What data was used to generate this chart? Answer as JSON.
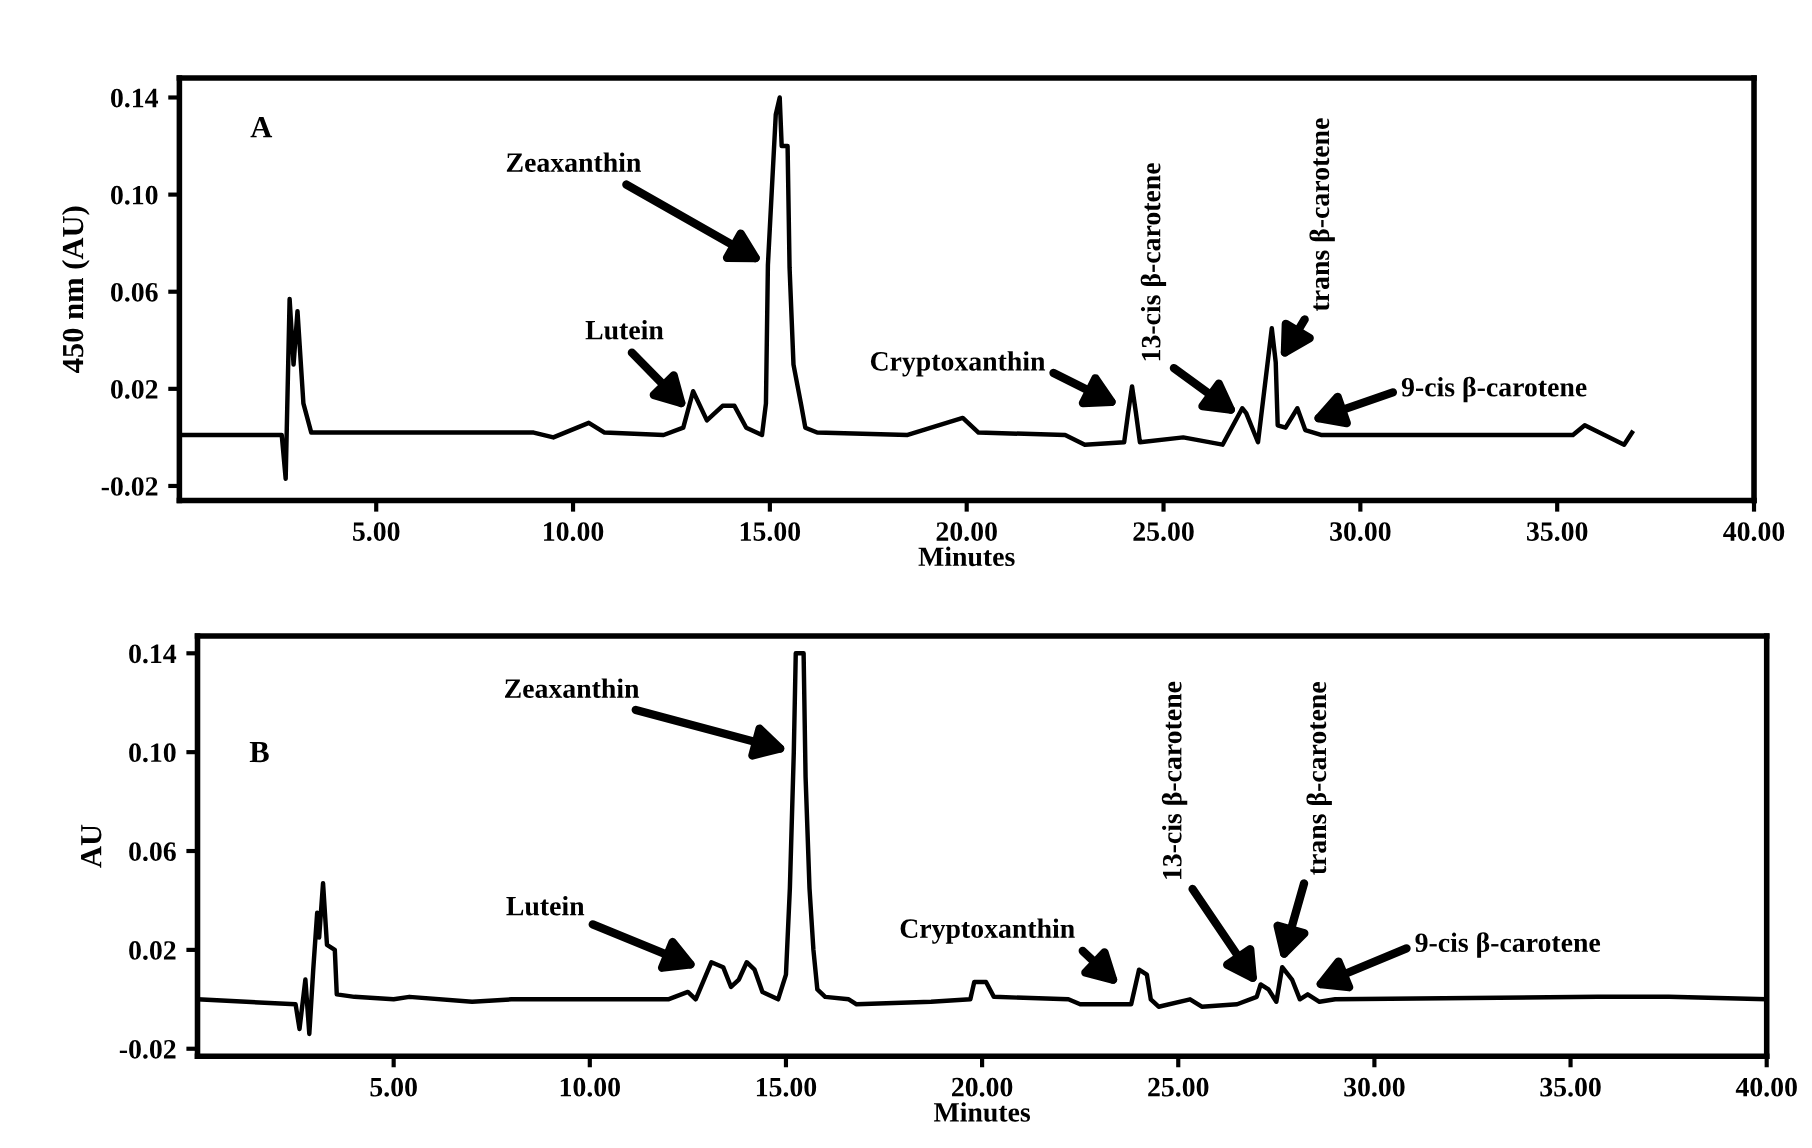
{
  "chart_data": [
    {
      "type": "line",
      "xlabel": "Minutes",
      "ylabel": "450 nm (AU)",
      "xlim": [
        0,
        40
      ],
      "ylim": [
        -0.026,
        0.148
      ],
      "xticks": [
        {
          "value": 5,
          "label": "5.00"
        },
        {
          "value": 10,
          "label": "10.00"
        },
        {
          "value": 15,
          "label": "15.00"
        },
        {
          "value": 20,
          "label": "20.00"
        },
        {
          "value": 25,
          "label": "25.00"
        },
        {
          "value": 30,
          "label": "30.00"
        },
        {
          "value": 35,
          "label": "35.00"
        },
        {
          "value": 40,
          "label": "40.00"
        }
      ],
      "yticks": [
        -0.02,
        0.02,
        0.06,
        {
          "value": 0.1,
          "label": "0.10"
        },
        0.14
      ],
      "grid": false,
      "series": [
        {
          "color": "#000000",
          "x": [
            0.1,
            1.0,
            2.0,
            2.6,
            2.7,
            2.8,
            2.9,
            3.0,
            3.15,
            3.35,
            5.0,
            9.0,
            9.5,
            10.4,
            10.8,
            12.3,
            12.8,
            13.05,
            13.4,
            13.8,
            14.1,
            14.4,
            14.8,
            14.9,
            14.95,
            15.15,
            15.25,
            15.3,
            15.45,
            15.5,
            15.6,
            15.8,
            15.9,
            16.2,
            18.5,
            19.9,
            20.3,
            22.5,
            23.0,
            24.0,
            24.1,
            24.2,
            24.3,
            24.4,
            25.5,
            26.5,
            27.0,
            27.1,
            27.4,
            27.75,
            27.85,
            27.9,
            28.1,
            28.4,
            28.6,
            29.0,
            35.4,
            35.7,
            36.2,
            36.7,
            36.9
          ],
          "values": [
            0.001,
            0.001,
            0.001,
            0.001,
            -0.017,
            0.057,
            0.03,
            0.052,
            0.014,
            0.002,
            0.002,
            0.002,
            0.0,
            0.006,
            0.002,
            0.001,
            0.004,
            0.019,
            0.007,
            0.013,
            0.013,
            0.004,
            0.001,
            0.014,
            0.071,
            0.133,
            0.14,
            0.12,
            0.12,
            0.07,
            0.03,
            0.013,
            0.004,
            0.002,
            0.001,
            0.008,
            0.002,
            0.001,
            -0.003,
            -0.002,
            0.01,
            0.021,
            0.01,
            -0.002,
            0.0,
            -0.003,
            0.012,
            0.01,
            -0.002,
            0.045,
            0.031,
            0.005,
            0.004,
            0.012,
            0.003,
            0.001,
            0.001,
            0.005,
            0.001,
            -0.003,
            0.002
          ]
        }
      ],
      "annotations": [
        "A",
        {
          "text": "Zeaxanthin",
          "x": 14.95,
          "y": 0.071
        },
        {
          "text": "Lutein",
          "x": 13.0,
          "y": 0.01
        },
        {
          "text": "Cryptoxanthin",
          "x": 24.0,
          "y": 0.012
        },
        {
          "text": "13-cis β-carotene",
          "x": 27.0,
          "y": 0.008
        },
        {
          "text": "trans β-carotene",
          "x": 27.9,
          "y": 0.03
        },
        {
          "text": "9-cis β-carotene",
          "x": 28.6,
          "y": 0.006
        }
      ]
    },
    {
      "type": "line",
      "xlabel": "Minutes",
      "ylabel": "AU",
      "xlim": [
        0,
        40
      ],
      "ylim": [
        -0.023,
        0.147
      ],
      "xticks": [
        {
          "value": 5,
          "label": "5.00"
        },
        {
          "value": 10,
          "label": "10.00"
        },
        {
          "value": 15,
          "label": "15.00"
        },
        {
          "value": 20,
          "label": "20.00"
        },
        {
          "value": 25,
          "label": "25.00"
        },
        {
          "value": 30,
          "label": "30.00"
        },
        {
          "value": 35,
          "label": "35.00"
        },
        {
          "value": 40,
          "label": "40.00"
        }
      ],
      "yticks": [
        -0.02,
        0.02,
        0.06,
        {
          "value": 0.1,
          "label": "0.10"
        },
        0.14
      ],
      "grid": false,
      "series": [
        {
          "color": "#000000",
          "x": [
            0.0,
            2.5,
            2.6,
            2.75,
            2.85,
            2.95,
            3.05,
            3.1,
            3.2,
            3.3,
            3.5,
            3.55,
            4.0,
            5.0,
            5.4,
            7.0,
            8.0,
            9.5,
            10.5,
            12.0,
            12.5,
            12.7,
            13.1,
            13.4,
            13.6,
            13.8,
            14.0,
            14.2,
            14.4,
            14.8,
            15.0,
            15.1,
            15.2,
            15.25,
            15.45,
            15.5,
            15.6,
            15.7,
            15.8,
            16.0,
            16.6,
            16.8,
            18.7,
            19.7,
            19.8,
            20.1,
            20.3,
            22.2,
            22.5,
            23.8,
            24.0,
            24.2,
            24.3,
            24.5,
            25.3,
            25.6,
            26.5,
            27.0,
            27.1,
            27.3,
            27.5,
            27.65,
            27.9,
            28.1,
            28.3,
            28.6,
            29.0,
            35.7,
            37.5,
            40.0
          ],
          "values": [
            0.0,
            -0.002,
            -0.012,
            0.008,
            -0.014,
            0.012,
            0.035,
            0.025,
            0.047,
            0.022,
            0.02,
            0.002,
            0.001,
            0.0,
            0.001,
            -0.001,
            0.0,
            0.0,
            0.0,
            0.0,
            0.003,
            0.0,
            0.015,
            0.013,
            0.005,
            0.008,
            0.015,
            0.012,
            0.003,
            0.0,
            0.01,
            0.045,
            0.1,
            0.14,
            0.14,
            0.09,
            0.045,
            0.02,
            0.004,
            0.001,
            0.0,
            -0.002,
            -0.001,
            0.0,
            0.007,
            0.007,
            0.001,
            0.0,
            -0.002,
            -0.002,
            0.012,
            0.01,
            0.0,
            -0.003,
            0.0,
            -0.003,
            -0.002,
            0.001,
            0.006,
            0.004,
            -0.001,
            0.013,
            0.008,
            0.0,
            0.002,
            -0.001,
            0.0,
            0.001,
            0.001,
            0.0
          ]
        }
      ],
      "annotations": [
        "B",
        {
          "text": "Zeaxanthin",
          "x": 15.2,
          "y": 0.1
        },
        {
          "text": "Lutein",
          "x": 12.9,
          "y": 0.012
        },
        {
          "text": "Cryptoxanthin",
          "x": 23.6,
          "y": 0.004
        },
        {
          "text": "13-cis β-carotene",
          "x": 27.1,
          "y": 0.004
        },
        {
          "text": "trans β-carotene",
          "x": 27.6,
          "y": 0.013
        },
        {
          "text": "9-cis β-carotene",
          "x": 28.3,
          "y": 0.004
        }
      ]
    }
  ]
}
